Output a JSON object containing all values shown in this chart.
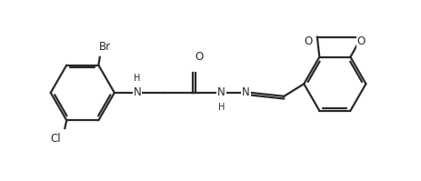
{
  "bg_color": "#ffffff",
  "line_color": "#2a2a2a",
  "line_width": 1.6,
  "dbo": 0.055,
  "font_size": 8.5,
  "figsize": [
    4.64,
    1.99
  ],
  "dpi": 100,
  "xlim": [
    0,
    9.5
  ],
  "ylim": [
    0,
    4.0
  ]
}
